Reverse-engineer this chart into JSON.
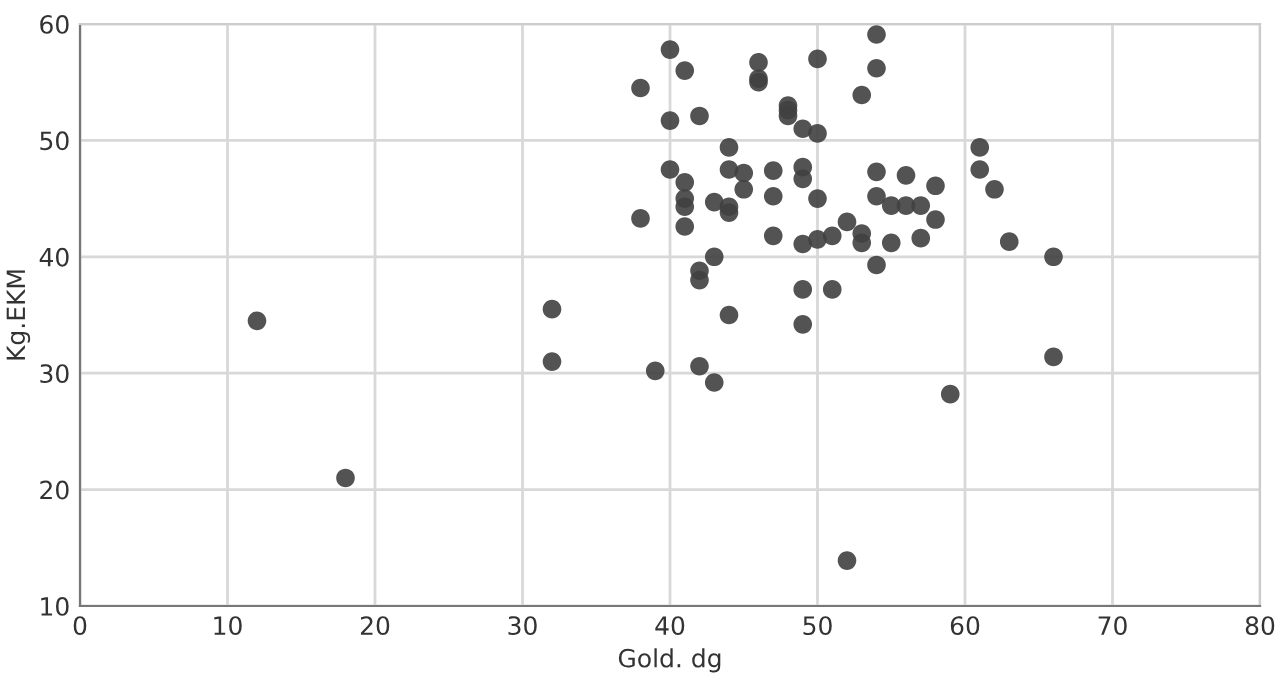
{
  "chart_data": {
    "type": "scatter",
    "xlabel": "Gold. dg",
    "ylabel": "Kg.EKM",
    "xlim": [
      0,
      80
    ],
    "ylim": [
      10,
      60
    ],
    "xticks": [
      0,
      10,
      20,
      30,
      40,
      50,
      60,
      70,
      80
    ],
    "yticks": [
      10,
      20,
      30,
      40,
      50,
      60
    ],
    "grid": true,
    "marker": "circle",
    "series": [
      {
        "color": "#404040",
        "x": [
          12,
          18,
          32,
          32,
          38,
          38,
          39,
          40,
          40,
          40,
          41,
          41,
          41,
          41,
          41,
          42,
          42,
          42,
          42,
          43,
          43,
          43,
          44,
          44,
          44,
          44,
          44,
          45,
          45,
          46,
          46,
          46,
          47,
          47,
          47,
          48,
          48,
          48,
          49,
          49,
          49,
          49,
          49,
          49,
          50,
          50,
          50,
          50,
          51,
          51,
          52,
          52,
          53,
          53,
          53,
          54,
          54,
          54,
          54,
          54,
          55,
          55,
          56,
          56,
          57,
          57,
          58,
          58,
          59,
          61,
          61,
          62,
          63,
          66,
          66
        ],
        "values": [
          34.5,
          21,
          35.5,
          31,
          54.5,
          43.3,
          30.2,
          57.8,
          51.7,
          47.5,
          56,
          46.4,
          45,
          44.3,
          42.6,
          52.1,
          38.8,
          38,
          30.6,
          44.7,
          40,
          29.2,
          49.4,
          47.5,
          44.3,
          43.8,
          35,
          47.2,
          45.8,
          56.7,
          55.3,
          55,
          47.4,
          45.2,
          41.8,
          53,
          52.6,
          52.1,
          51,
          47.7,
          46.7,
          41.1,
          37.2,
          34.2,
          57,
          50.6,
          45,
          41.5,
          41.8,
          37.2,
          43,
          13.9,
          53.9,
          42,
          41.2,
          59.1,
          56.2,
          47.3,
          45.2,
          39.3,
          44.4,
          41.2,
          47,
          44.4,
          44.4,
          41.6,
          46.1,
          43.2,
          28.2,
          49.4,
          47.5,
          45.8,
          41.3,
          40,
          31.4
        ]
      }
    ]
  }
}
